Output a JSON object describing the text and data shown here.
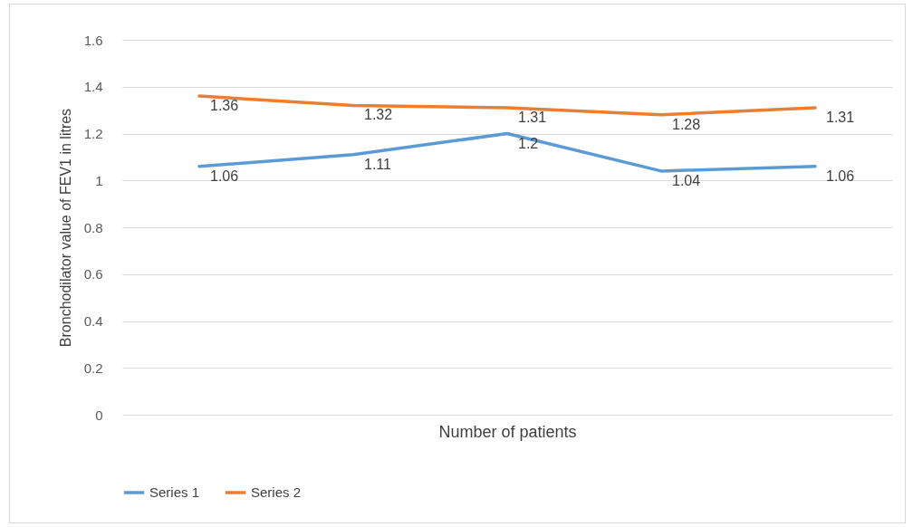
{
  "chart_data": {
    "type": "line",
    "xlabel": "Number of patients",
    "ylabel": "Bronchodilator value of FEV1 in litres",
    "categories": [
      null,
      null,
      null,
      null,
      null
    ],
    "series": [
      {
        "name": "Series 1",
        "color": "#5b9bd5",
        "values": [
          1.06,
          1.11,
          1.2,
          1.04,
          1.06
        ]
      },
      {
        "name": "Series 2",
        "color": "#ed7d31",
        "values": [
          1.36,
          1.32,
          1.31,
          1.28,
          1.31
        ]
      }
    ],
    "ylim": [
      0,
      1.6
    ],
    "yticks": [
      0,
      0.2,
      0.4,
      0.6,
      0.8,
      1,
      1.2,
      1.4,
      1.6
    ],
    "grid": "y",
    "legend": "bottom",
    "tick_labels": "y",
    "marker": "none",
    "line_style": "solid",
    "data_labels": true
  }
}
